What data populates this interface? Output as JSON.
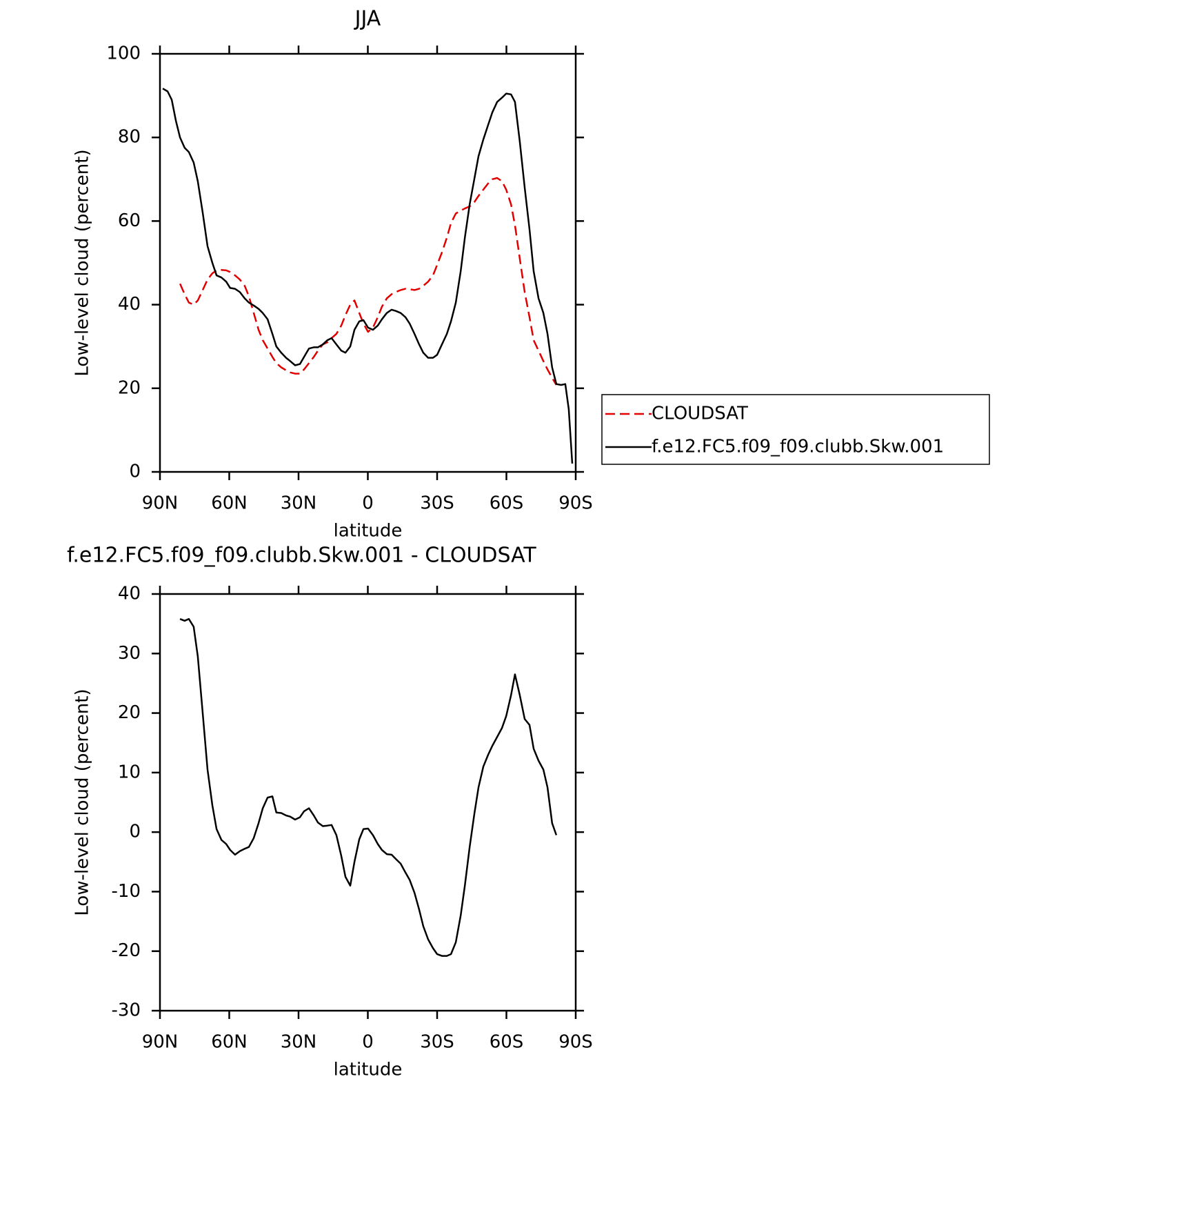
{
  "chart_data": [
    {
      "type": "line",
      "title": "JJA",
      "xlabel": "latitude",
      "ylabel": "Low-level cloud (percent)",
      "xlim": [
        90,
        -90
      ],
      "xticks": [
        {
          "value": 90,
          "label": "90N"
        },
        {
          "value": 60,
          "label": "60N"
        },
        {
          "value": 30,
          "label": "30N"
        },
        0,
        {
          "value": -30,
          "label": "30S"
        },
        {
          "value": -60,
          "label": "60S"
        },
        {
          "value": -90,
          "label": "90S"
        }
      ],
      "ylim": [
        0,
        100
      ],
      "yticks": [
        0,
        20,
        40,
        60,
        80,
        100
      ],
      "legend": "right",
      "x": [
        88.8,
        86.7,
        84.9,
        83.1,
        81.3,
        79.3,
        77.5,
        75.4,
        73.6,
        71.5,
        69.4,
        67.3,
        65.5,
        63.4,
        61.3,
        59.6,
        57.5,
        55.4,
        53.3,
        51.5,
        49.4,
        47.3,
        45.5,
        43.4,
        41.3,
        39.6,
        37.5,
        35.4,
        33.6,
        31.5,
        29.4,
        27.6,
        25.5,
        23.4,
        21.6,
        19.5,
        17.5,
        15.7,
        13.6,
        11.5,
        9.7,
        7.6,
        5.8,
        3.7,
        1.9,
        -0.1,
        -2.2,
        -4.3,
        -6.1,
        -8.2,
        -10.3,
        -12.1,
        -14.2,
        -16.3,
        -18.1,
        -20.2,
        -22.2,
        -24.0,
        -26.1,
        -28.2,
        -30.0,
        -32.1,
        -34.2,
        -36.0,
        -38.1,
        -40.2,
        -42.0,
        -44.1,
        -46.1,
        -47.9,
        -50.0,
        -52.1,
        -53.9,
        -56.0,
        -58.1,
        -59.9,
        -62.0,
        -63.7,
        -65.8,
        -67.9,
        -70.0,
        -71.8,
        -73.9,
        -76.0,
        -77.8,
        -79.8,
        -81.6,
        -83.7,
        -85.5,
        -87.0,
        -88.5
      ],
      "series": [
        {
          "name": "CLOUDSAT",
          "color": "#e00000",
          "dash": "dashed",
          "values": [
            null,
            null,
            null,
            null,
            45,
            42.5,
            40.5,
            40,
            41,
            43.5,
            46,
            47.5,
            48.2,
            48.3,
            48.2,
            47.8,
            47,
            46,
            44.5,
            42,
            38,
            34,
            31.5,
            29.5,
            27.5,
            26,
            25,
            24.3,
            23.8,
            23.5,
            23.5,
            24.5,
            26,
            27.5,
            29,
            30.5,
            31,
            32,
            33,
            35,
            37.5,
            40,
            41,
            38,
            35.5,
            33.5,
            34.5,
            37,
            39.5,
            41.5,
            42.5,
            43,
            43.5,
            43.8,
            43.7,
            43.5,
            43.8,
            44.5,
            45.5,
            47,
            49.5,
            52.5,
            56,
            59.5,
            61.8,
            62.5,
            63,
            63.5,
            64.5,
            66,
            67.5,
            69,
            70,
            70.3,
            69.5,
            67.5,
            64,
            59,
            51,
            43,
            37,
            31.5,
            29,
            26.5,
            24.5,
            22.5,
            20.8,
            null,
            null,
            null,
            null
          ]
        },
        {
          "name": "f.e12.FC5.f09_f09.clubb.Skw.001",
          "color": "#000000",
          "dash": "solid",
          "values": [
            91.7,
            91,
            89,
            84,
            80,
            77.5,
            76.5,
            74,
            69.5,
            62,
            54,
            50,
            47,
            46.5,
            45.5,
            44,
            43.8,
            43,
            41.5,
            40.5,
            39.8,
            39,
            38,
            36.5,
            33,
            30,
            28.5,
            27.3,
            26.5,
            25.5,
            25.8,
            27.5,
            29.5,
            29.8,
            29.8,
            30.5,
            31.5,
            32,
            30.5,
            29,
            28.5,
            30,
            34,
            36,
            36.3,
            34.5,
            34,
            35,
            36.5,
            38,
            38.8,
            38.5,
            38,
            37,
            35.5,
            33,
            30.5,
            28.5,
            27.3,
            27.3,
            28,
            30.5,
            33,
            36,
            40.5,
            48,
            56,
            64,
            70,
            75.5,
            79.5,
            83,
            86,
            88.5,
            89.5,
            90.5,
            90.3,
            88.5,
            79,
            68,
            58,
            48,
            41.5,
            38,
            33,
            25,
            21,
            20.8,
            21,
            15,
            2
          ]
        }
      ]
    },
    {
      "type": "line",
      "title": "f.e12.FC5.f09_f09.clubb.Skw.001 - CLOUDSAT",
      "xlabel": "latitude",
      "ylabel": "Low-level cloud (percent)",
      "xlim": [
        90,
        -90
      ],
      "xticks": [
        {
          "value": 90,
          "label": "90N"
        },
        {
          "value": 60,
          "label": "60N"
        },
        {
          "value": 30,
          "label": "30N"
        },
        0,
        {
          "value": -30,
          "label": "30S"
        },
        {
          "value": -60,
          "label": "60S"
        },
        {
          "value": -90,
          "label": "90S"
        }
      ],
      "ylim": [
        -30,
        40
      ],
      "yticks": [
        -30,
        -20,
        -10,
        0,
        10,
        20,
        30,
        40
      ],
      "color": "#000000",
      "x": [
        81.3,
        79.3,
        77.5,
        75.4,
        73.6,
        71.5,
        69.4,
        67.3,
        65.5,
        63.4,
        61.3,
        59.6,
        57.5,
        55.4,
        53.3,
        51.5,
        49.4,
        47.3,
        45.5,
        43.4,
        41.3,
        39.6,
        37.5,
        35.4,
        33.6,
        31.5,
        29.4,
        27.6,
        25.5,
        23.4,
        21.6,
        19.5,
        17.5,
        15.7,
        13.6,
        11.5,
        9.7,
        7.6,
        5.8,
        3.7,
        1.9,
        -0.1,
        -2.2,
        -4.3,
        -6.1,
        -8.2,
        -10.3,
        -12.1,
        -14.2,
        -16.3,
        -18.1,
        -20.2,
        -22.2,
        -24.0,
        -26.1,
        -28.2,
        -30.0,
        -32.1,
        -34.2,
        -36.0,
        -38.1,
        -40.2,
        -42.0,
        -44.1,
        -46.1,
        -47.9,
        -50.0,
        -52.1,
        -53.9,
        -56.0,
        -58.1,
        -59.9,
        -62.0,
        -63.7,
        -65.8,
        -67.9,
        -70.0,
        -71.8,
        -73.9,
        -76.0,
        -77.8,
        -79.8,
        -81.6
      ],
      "values": [
        35.8,
        35.5,
        35.8,
        34.5,
        29.5,
        20,
        10.5,
        4.5,
        0.5,
        -1.3,
        -2,
        -3,
        -3.8,
        -3.2,
        -2.8,
        -2.5,
        -1,
        1.5,
        4,
        5.8,
        6,
        3.3,
        3.2,
        2.8,
        2.6,
        2.1,
        2.5,
        3.5,
        4,
        2.8,
        1.6,
        1,
        1.1,
        1.2,
        -0.5,
        -4,
        -7.5,
        -9,
        -5,
        -1.2,
        0.5,
        0.6,
        -0.5,
        -2,
        -3,
        -3.7,
        -3.8,
        -4.5,
        -5.3,
        -6.8,
        -8,
        -10.2,
        -13,
        -15.8,
        -18,
        -19.5,
        -20.5,
        -20.8,
        -20.8,
        -20.5,
        -18.5,
        -14,
        -9,
        -2.5,
        3,
        7.5,
        11,
        13,
        14.5,
        16,
        17.5,
        19.5,
        23,
        26.5,
        23,
        19,
        18,
        14,
        12,
        10.5,
        7.5,
        1.5,
        -0.5
      ]
    }
  ]
}
